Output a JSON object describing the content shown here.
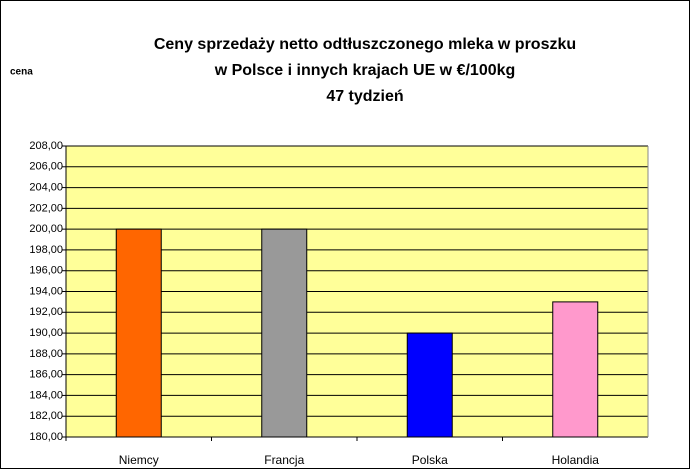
{
  "chart_data": {
    "type": "bar",
    "title": [
      "Ceny sprzedaży netto odtłuszczonego mleka w proszku",
      "w Polsce i innych krajach UE w €/100kg",
      "47 tydzień"
    ],
    "ylabel": "cena",
    "categories": [
      "Niemcy",
      "Francja",
      "Polska",
      "Holandia"
    ],
    "values": [
      200,
      200,
      190,
      193
    ],
    "colors": [
      "#ff6600",
      "#999999",
      "#0000ff",
      "#ff99cc"
    ],
    "ylim": [
      180,
      208
    ],
    "yticks": [
      {
        "value": 180,
        "label": "180,00"
      },
      {
        "value": 182,
        "label": "182,00"
      },
      {
        "value": 184,
        "label": "184,00"
      },
      {
        "value": 186,
        "label": "186,00"
      },
      {
        "value": 188,
        "label": "188,00"
      },
      {
        "value": 190,
        "label": "190,00"
      },
      {
        "value": 192,
        "label": "192,00"
      },
      {
        "value": 194,
        "label": "194,00"
      },
      {
        "value": 196,
        "label": "196,00"
      },
      {
        "value": 198,
        "label": "198,00"
      },
      {
        "value": 200,
        "label": "200,00"
      },
      {
        "value": 202,
        "label": "202,00"
      },
      {
        "value": 204,
        "label": "204,00"
      },
      {
        "value": 206,
        "label": "206,00"
      },
      {
        "value": 208,
        "label": "208,00"
      }
    ],
    "grid": true
  }
}
